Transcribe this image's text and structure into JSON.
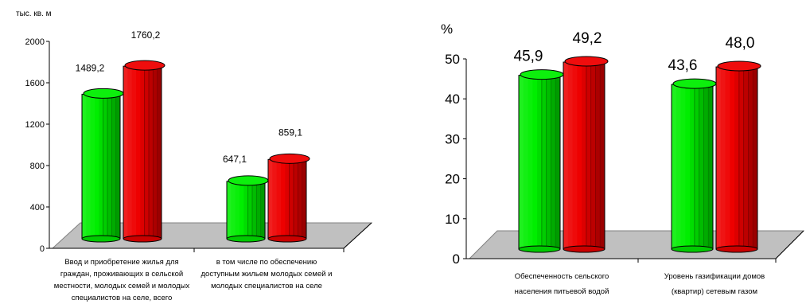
{
  "chart_data": [
    {
      "type": "bar",
      "unit_label": "тыс. кв. м",
      "categories": [
        [
          "Ввод и приобретение жилья для",
          "граждан, проживающих в сельской",
          "местности, молодых семей и молодых",
          "специалистов на селе, всего"
        ],
        [
          "в том числе по обеспечению",
          "доступным жильем молодых семей и",
          "молодых специалистов на селе"
        ]
      ],
      "series": [
        {
          "color": "#00ee00",
          "values": [
            1489.2,
            647.1
          ],
          "labels": [
            "1489,2",
            "647,1"
          ]
        },
        {
          "color": "#ee0000",
          "values": [
            1760.2,
            859.1
          ],
          "labels": [
            "1760,2",
            "859,1"
          ]
        }
      ],
      "y_ticks": [
        "0",
        "400",
        "800",
        "1200",
        "1600",
        "2000"
      ],
      "ylim": [
        0,
        2000
      ],
      "grid": false,
      "legend": "none"
    },
    {
      "type": "bar",
      "unit_label": "%",
      "categories": [
        [
          "Обеспеченность сельского",
          "населения питьевой водой"
        ],
        [
          "Уровень газификации домов",
          "(квартир) сетевым газом"
        ]
      ],
      "series": [
        {
          "color": "#00ee00",
          "values": [
            45.9,
            43.6
          ],
          "labels": [
            "45,9",
            "43,6"
          ]
        },
        {
          "color": "#ee0000",
          "values": [
            49.2,
            48.0
          ],
          "labels": [
            "49,2",
            "48,0"
          ]
        }
      ],
      "y_ticks": [
        "0",
        "10",
        "20",
        "30",
        "40",
        "50"
      ],
      "ylim": [
        0,
        50
      ],
      "grid": false,
      "legend": "none"
    }
  ]
}
